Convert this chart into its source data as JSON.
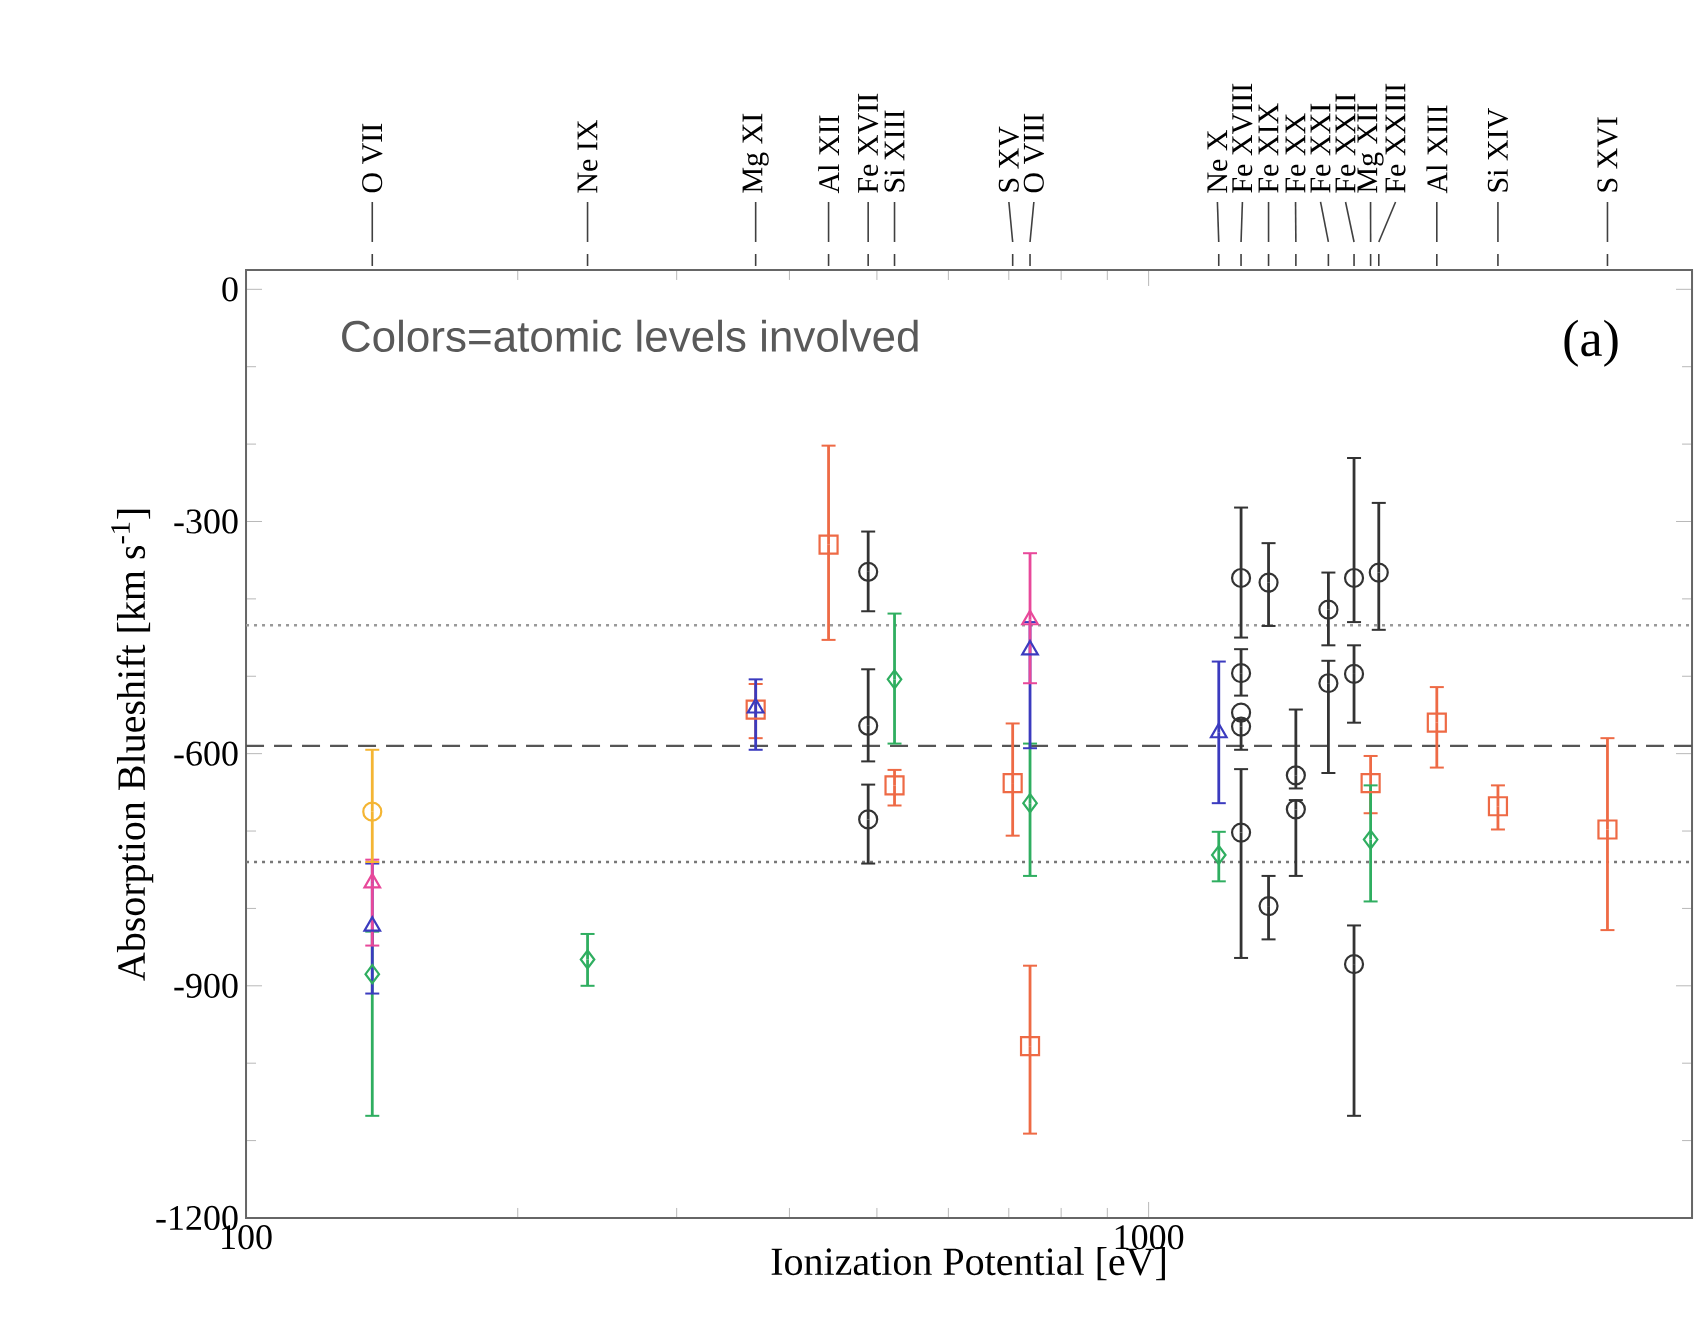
{
  "chart_data": {
    "type": "scatter",
    "xlabel": "Ionization Potential [eV]",
    "ylabel": "Absorption Blueshift [km s$^{-1}$]",
    "log": "x",
    "xlim": [
      100,
      4000
    ],
    "xticks": [
      100,
      1000
    ],
    "ylim": [
      -1200,
      25
    ],
    "yticks": [
      -1200,
      -900,
      -600,
      -300,
      0
    ],
    "series": [
      {
        "color": "#333333",
        "marker": "circle",
        "x": [
          489,
          489,
          489,
          1266,
          1266,
          1266,
          1266,
          1266,
          1358,
          1358,
          1456,
          1456,
          1582,
          1582,
          1689,
          1689,
          1689,
          1799
        ],
        "values": [
          -365,
          -564,
          -685,
          -373,
          -496,
          -547,
          -565,
          -702,
          -379,
          -797,
          -628,
          -672,
          -414,
          -509,
          -373,
          -497,
          -872,
          -366
        ],
        "errors": [
          [
            -416,
            -313
          ],
          [
            -610,
            -491
          ],
          [
            -742,
            -640
          ],
          [
            -450,
            -282
          ],
          [
            -525,
            -465
          ],
          null,
          [
            -595,
            -556
          ],
          [
            -864,
            -620
          ],
          [
            -435,
            -328
          ],
          [
            -840,
            -758
          ],
          [
            -645,
            -543
          ],
          [
            -758,
            -660
          ],
          [
            -460,
            -366
          ],
          [
            -625,
            -480
          ],
          [
            -430,
            -218
          ],
          [
            -560,
            -460
          ],
          [
            -1068,
            -822
          ],
          [
            -440,
            -276
          ]
        ]
      },
      {
        "color": "#ee6a45",
        "marker": "square",
        "x": [
          367,
          442,
          523,
          707,
          739,
          1762,
          2086,
          2438,
          3224
        ],
        "values": [
          -543,
          -330,
          -641,
          -638,
          -978,
          -638,
          -560,
          -668,
          -698
        ],
        "errors": [
          [
            -580,
            -510
          ],
          [
            -453,
            -202
          ],
          [
            -667,
            -621
          ],
          [
            -706,
            -561
          ],
          [
            -1091,
            -874
          ],
          [
            -677,
            -603
          ],
          [
            -618,
            -514
          ],
          [
            -698,
            -641
          ],
          [
            -828,
            -580
          ]
        ]
      },
      {
        "color": "#2fae60",
        "marker": "diamond",
        "x": [
          138,
          239,
          523,
          739,
          1196,
          1762
        ],
        "values": [
          -885,
          -866,
          -504,
          -664,
          -731,
          -711
        ],
        "errors": [
          [
            -1068,
            -830
          ],
          [
            -900,
            -833
          ],
          [
            -587,
            -419
          ],
          [
            -758,
            -587
          ],
          [
            -765,
            -701
          ],
          [
            -791,
            -641
          ]
        ]
      },
      {
        "color": "#3b3bbf",
        "marker": "triangle",
        "x": [
          138,
          367,
          739,
          1196
        ],
        "values": [
          -823,
          -541,
          -466,
          -573
        ],
        "errors": [
          [
            -910,
            -742
          ],
          [
            -595,
            -504
          ],
          [
            -593,
            -430
          ],
          [
            -664,
            -481
          ]
        ]
      },
      {
        "color": "#e8489a",
        "marker": "triangle",
        "x": [
          138,
          739
        ],
        "values": [
          -767,
          -427
        ],
        "errors": [
          [
            -848,
            -737
          ],
          [
            -509,
            -341
          ]
        ]
      },
      {
        "color": "#f4b533",
        "marker": "circle",
        "x": [
          138
        ],
        "values": [
          -675
        ],
        "errors": [
          [
            -740,
            -595
          ]
        ]
      }
    ],
    "ref_lines": [
      {
        "axis": "y",
        "value": -434,
        "color": "#999999",
        "line_style": "dotted"
      },
      {
        "axis": "y",
        "value": -590,
        "color": "#555555",
        "line_style": "dashed"
      },
      {
        "axis": "y",
        "value": -740,
        "color": "#777777",
        "line_style": "dotted"
      }
    ],
    "annotations": [
      "Colors=atomic levels involved",
      "(a)",
      {
        "text": "O VII",
        "x": 138
      },
      {
        "text": "Ne IX",
        "x": 239
      },
      {
        "text": "Mg XI",
        "x": 367
      },
      {
        "text": "Al XII",
        "x": 442
      },
      {
        "text": "Fe XVII",
        "x": 489
      },
      {
        "text": "Si XIII",
        "x": 523
      },
      {
        "text": "S XV",
        "x": 707
      },
      {
        "text": "O VIII",
        "x": 739
      },
      {
        "text": "Ne X",
        "x": 1196
      },
      {
        "text": "Fe XVIII",
        "x": 1266
      },
      {
        "text": "Fe XIX",
        "x": 1358
      },
      {
        "text": "Fe XX",
        "x": 1456
      },
      {
        "text": "Fe XXI",
        "x": 1582
      },
      {
        "text": "Fe XXII",
        "x": 1689
      },
      {
        "text": "Mg XII",
        "x": 1762
      },
      {
        "text": "Fe XXIII",
        "x": 1799
      },
      {
        "text": "Al XIII",
        "x": 2086
      },
      {
        "text": "Si XIV",
        "x": 2438
      },
      {
        "text": "S XVI",
        "x": 3224
      }
    ]
  }
}
